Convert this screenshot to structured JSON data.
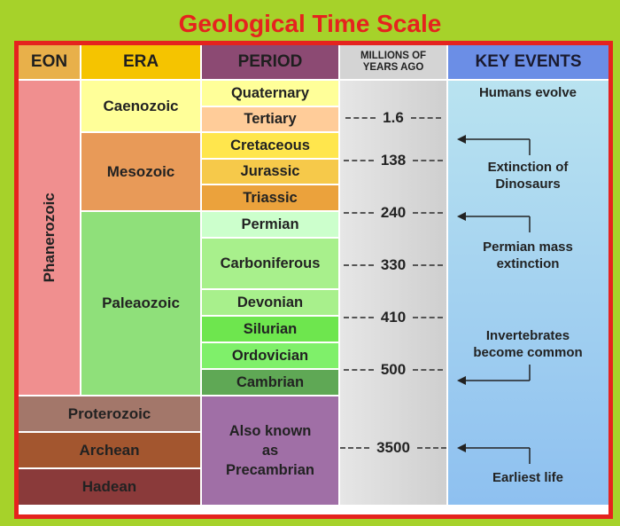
{
  "title": "Geological Time Scale",
  "headers": {
    "eon": "EON",
    "era": "ERA",
    "period": "PERIOD",
    "mya_line1": "MILLIONS OF",
    "mya_line2": "YEARS AGO",
    "events": "KEY EVENTS"
  },
  "eons": {
    "phanerozoic": "Phanerozoic",
    "proterozoic": "Proterozoic",
    "archean": "Archean",
    "hadean": "Hadean"
  },
  "eras": {
    "caenozoic": "Caenozoic",
    "mesozoic": "Mesozoic",
    "paleaozoic": "Paleaozoic"
  },
  "periods": {
    "quaternary": "Quaternary",
    "tertiary": "Tertiary",
    "cretaceous": "Cretaceous",
    "jurassic": "Jurassic",
    "triassic": "Triassic",
    "permian": "Permian",
    "carboniferous": "Carboniferous",
    "devonian": "Devonian",
    "silurian": "Silurian",
    "ordovician": "Ordovician",
    "cambrian": "Cambrian",
    "precambrian_line1": "Also known",
    "precambrian_line2": "as",
    "precambrian_line3": "Precambrian"
  },
  "millions_of_years": [
    "1.6",
    "138",
    "240",
    "330",
    "410",
    "500",
    "3500"
  ],
  "events": {
    "humans_evolve": "Humans evolve",
    "dinosaur_line1": "Extinction of",
    "dinosaur_line2": "Dinosaurs",
    "permian_line1": "Permian mass",
    "permian_line2": "extinction",
    "invert_line1": "Invertebrates",
    "invert_line2": "become common",
    "earliest_life": "Earliest life"
  },
  "colors": {
    "frame": "#a6d22a",
    "title": "#e5231e",
    "eon_header": "#e8b04a",
    "era_header": "#f5c400",
    "period_header": "#8c4a73",
    "mya_header": "#d4d4d4",
    "events_header": "#6b8ee6",
    "phanerozoic": "#f08f8f",
    "proterozoic": "#a3776a",
    "archean": "#a3562f",
    "hadean": "#8a3a3a",
    "caenozoic": "#ffff99",
    "mesozoic": "#e89a58",
    "paleaozoic": "#8fe07a",
    "precambrian": "#a06fa6"
  }
}
